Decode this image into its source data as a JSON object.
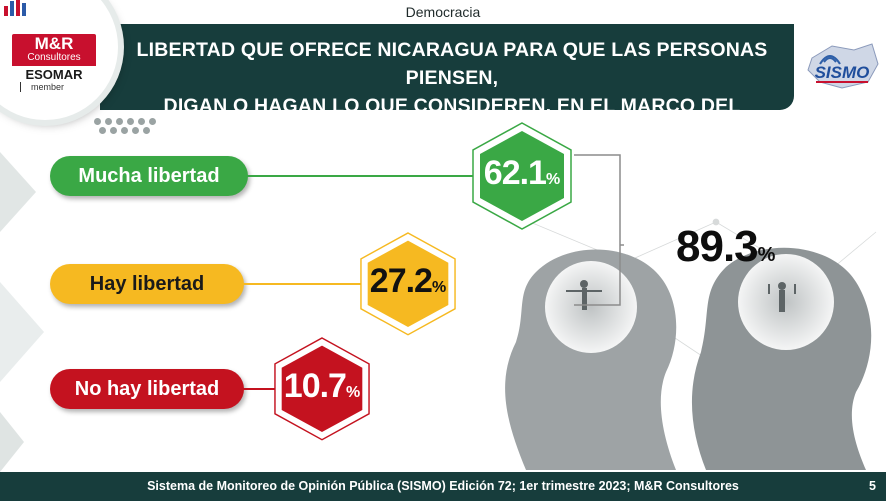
{
  "section": "Democracia",
  "title_line1": "LIBERTAD QUE OFRECE NICARAGUA PARA QUE LAS PERSONAS PIENSEN,",
  "title_line2": "DIGAN O HAGAN LO QUE CONSIDEREN, EN EL MARCO DEL RESPETO",
  "logo": {
    "brand": "M&R",
    "sub": "Consultores",
    "assoc": "ESOMAR",
    "assoc_sub": "member"
  },
  "sismo_logo": "SISMO",
  "chart_data": {
    "type": "bar",
    "categories": [
      "Mucha libertad",
      "Hay libertad",
      "No hay libertad"
    ],
    "values": [
      62.1,
      27.2,
      10.7
    ],
    "value_labels": [
      "62.1",
      "27.2",
      "10.7"
    ],
    "unit": "%",
    "colors": [
      "#3aa845",
      "#f6b921",
      "#c4121f"
    ],
    "label_text_colors": [
      "#ffffff",
      "#1a1a1a",
      "#ffffff"
    ],
    "group_total": {
      "value": 89.3,
      "label": "89.3",
      "unit": "%",
      "sum_of": [
        "Mucha libertad",
        "Hay libertad"
      ]
    }
  },
  "footer": {
    "source": "Sistema de Monitoreo de Opinión Pública (SISMO) Edición 72; 1er trimestre 2023; M&R Consultores",
    "page": "5"
  }
}
